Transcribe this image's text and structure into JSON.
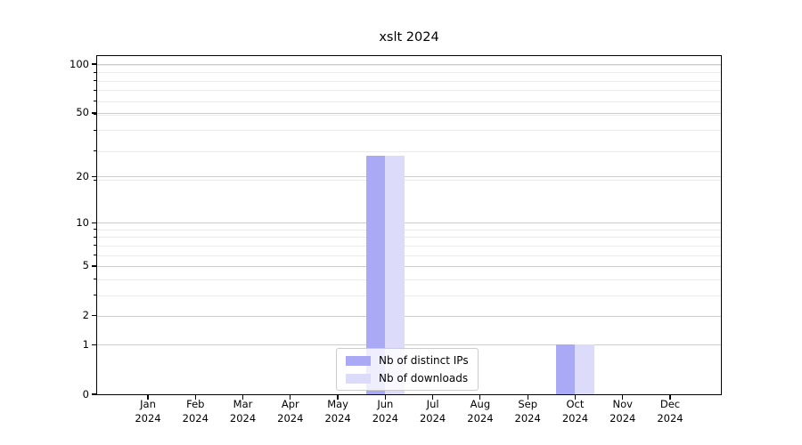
{
  "title": "xslt 2024",
  "chart_data": {
    "type": "bar",
    "title": "xslt 2024",
    "categories": [
      "Jan",
      "Feb",
      "Mar",
      "Apr",
      "May",
      "Jun",
      "Jul",
      "Aug",
      "Sep",
      "Oct",
      "Nov",
      "Dec"
    ],
    "category_year": "2024",
    "series": [
      {
        "name": "Nb of distinct IPs",
        "color": "#a9a9f5",
        "values": [
          0,
          0,
          0,
          0,
          0,
          27,
          0,
          0,
          0,
          1,
          0,
          0
        ]
      },
      {
        "name": "Nb of downloads",
        "color": "#dcdcfa",
        "values": [
          0,
          0,
          0,
          0,
          0,
          27,
          0,
          0,
          0,
          1,
          0,
          0
        ]
      }
    ],
    "xlabel": "",
    "ylabel": "",
    "y_axis": {
      "scale": "log1p",
      "ticks": [
        0,
        1,
        2,
        5,
        10,
        20,
        50,
        100
      ],
      "max": 112
    },
    "minor_grid_values": [
      3,
      4,
      6,
      7,
      8,
      9,
      19,
      29,
      39,
      49,
      59,
      69,
      79,
      89,
      99
    ],
    "grid": true,
    "legend": {
      "position": "lower center"
    },
    "colors": {
      "major_grid": "#cccccc",
      "minor_grid": "#ebebeb",
      "spine": "#000000",
      "background": "#ffffff",
      "legend_border": "#cccccc"
    }
  }
}
